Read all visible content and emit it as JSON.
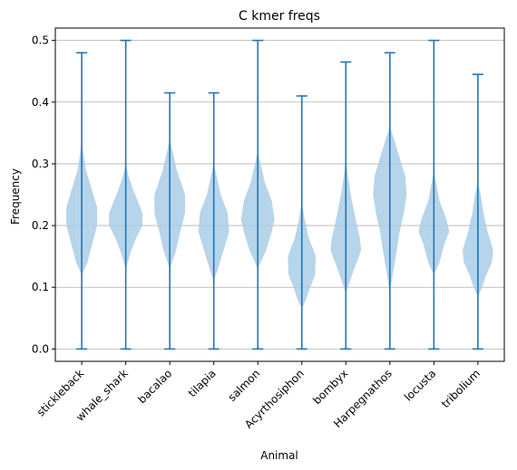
{
  "chart_data": {
    "type": "violin",
    "title": "C kmer freqs",
    "xlabel": "Animal",
    "ylabel": "Frequency",
    "ylim": [
      -0.02,
      0.52
    ],
    "yticks": [
      "0.0",
      "0.1",
      "0.2",
      "0.3",
      "0.4",
      "0.5"
    ],
    "grid": "horizontal",
    "colors": {
      "body": "#a9cce6",
      "line": "#1f77b4",
      "grid": "#b0b0b0"
    },
    "categories": [
      "stickleback",
      "whale_shark",
      "bacalao",
      "tilapia",
      "salmon",
      "Acyrthosiphon",
      "bombyx",
      "Harpegnathos",
      "locusta",
      "tribolium"
    ],
    "violins": [
      {
        "name": "stickleback",
        "min": 0.0,
        "max": 0.48,
        "profile": [
          [
            0.34,
            0.0
          ],
          [
            0.32,
            0.01
          ],
          [
            0.29,
            0.03
          ],
          [
            0.26,
            0.07
          ],
          [
            0.23,
            0.11
          ],
          [
            0.2,
            0.11
          ],
          [
            0.17,
            0.075
          ],
          [
            0.14,
            0.04
          ],
          [
            0.12,
            0.0
          ]
        ]
      },
      {
        "name": "whale_shark",
        "min": 0.0,
        "max": 0.5,
        "profile": [
          [
            0.3,
            0.0
          ],
          [
            0.28,
            0.02
          ],
          [
            0.26,
            0.05
          ],
          [
            0.24,
            0.085
          ],
          [
            0.22,
            0.12
          ],
          [
            0.2,
            0.12
          ],
          [
            0.18,
            0.075
          ],
          [
            0.16,
            0.04
          ],
          [
            0.13,
            0.0
          ]
        ]
      },
      {
        "name": "bacalao",
        "min": 0.0,
        "max": 0.415,
        "profile": [
          [
            0.34,
            0.0
          ],
          [
            0.32,
            0.02
          ],
          [
            0.29,
            0.05
          ],
          [
            0.25,
            0.11
          ],
          [
            0.22,
            0.11
          ],
          [
            0.19,
            0.075
          ],
          [
            0.16,
            0.045
          ],
          [
            0.13,
            0.0
          ]
        ]
      },
      {
        "name": "tilapia",
        "min": 0.0,
        "max": 0.415,
        "profile": [
          [
            0.3,
            0.0
          ],
          [
            0.28,
            0.02
          ],
          [
            0.25,
            0.05
          ],
          [
            0.22,
            0.1
          ],
          [
            0.19,
            0.11
          ],
          [
            0.16,
            0.07
          ],
          [
            0.13,
            0.03
          ],
          [
            0.11,
            0.0
          ]
        ]
      },
      {
        "name": "salmon",
        "min": 0.0,
        "max": 0.5,
        "profile": [
          [
            0.32,
            0.0
          ],
          [
            0.3,
            0.02
          ],
          [
            0.27,
            0.05
          ],
          [
            0.24,
            0.1
          ],
          [
            0.21,
            0.12
          ],
          [
            0.19,
            0.1
          ],
          [
            0.16,
            0.06
          ],
          [
            0.13,
            0.0
          ]
        ]
      },
      {
        "name": "Acyrthosiphon",
        "min": 0.0,
        "max": 0.41,
        "profile": [
          [
            0.24,
            0.0
          ],
          [
            0.21,
            0.02
          ],
          [
            0.18,
            0.05
          ],
          [
            0.15,
            0.1
          ],
          [
            0.12,
            0.095
          ],
          [
            0.1,
            0.06
          ],
          [
            0.08,
            0.03
          ],
          [
            0.065,
            0.0
          ]
        ]
      },
      {
        "name": "bombyx",
        "min": 0.0,
        "max": 0.465,
        "profile": [
          [
            0.31,
            0.0
          ],
          [
            0.28,
            0.015
          ],
          [
            0.25,
            0.035
          ],
          [
            0.21,
            0.07
          ],
          [
            0.18,
            0.1
          ],
          [
            0.16,
            0.11
          ],
          [
            0.13,
            0.06
          ],
          [
            0.11,
            0.03
          ],
          [
            0.09,
            0.0
          ]
        ]
      },
      {
        "name": "Harpegnathos",
        "min": 0.0,
        "max": 0.48,
        "profile": [
          [
            0.36,
            0.0
          ],
          [
            0.34,
            0.03
          ],
          [
            0.31,
            0.07
          ],
          [
            0.28,
            0.11
          ],
          [
            0.25,
            0.12
          ],
          [
            0.22,
            0.1
          ],
          [
            0.19,
            0.07
          ],
          [
            0.16,
            0.05
          ],
          [
            0.12,
            0.02
          ],
          [
            0.09,
            0.0
          ]
        ]
      },
      {
        "name": "locusta",
        "min": 0.0,
        "max": 0.5,
        "profile": [
          [
            0.29,
            0.0
          ],
          [
            0.27,
            0.015
          ],
          [
            0.24,
            0.04
          ],
          [
            0.21,
            0.09
          ],
          [
            0.19,
            0.11
          ],
          [
            0.17,
            0.075
          ],
          [
            0.14,
            0.04
          ],
          [
            0.12,
            0.0
          ]
        ]
      },
      {
        "name": "tribolium",
        "min": 0.0,
        "max": 0.445,
        "profile": [
          [
            0.27,
            0.0
          ],
          [
            0.25,
            0.02
          ],
          [
            0.22,
            0.04
          ],
          [
            0.19,
            0.07
          ],
          [
            0.16,
            0.11
          ],
          [
            0.14,
            0.1
          ],
          [
            0.12,
            0.06
          ],
          [
            0.1,
            0.03
          ],
          [
            0.085,
            0.0
          ]
        ]
      }
    ]
  }
}
